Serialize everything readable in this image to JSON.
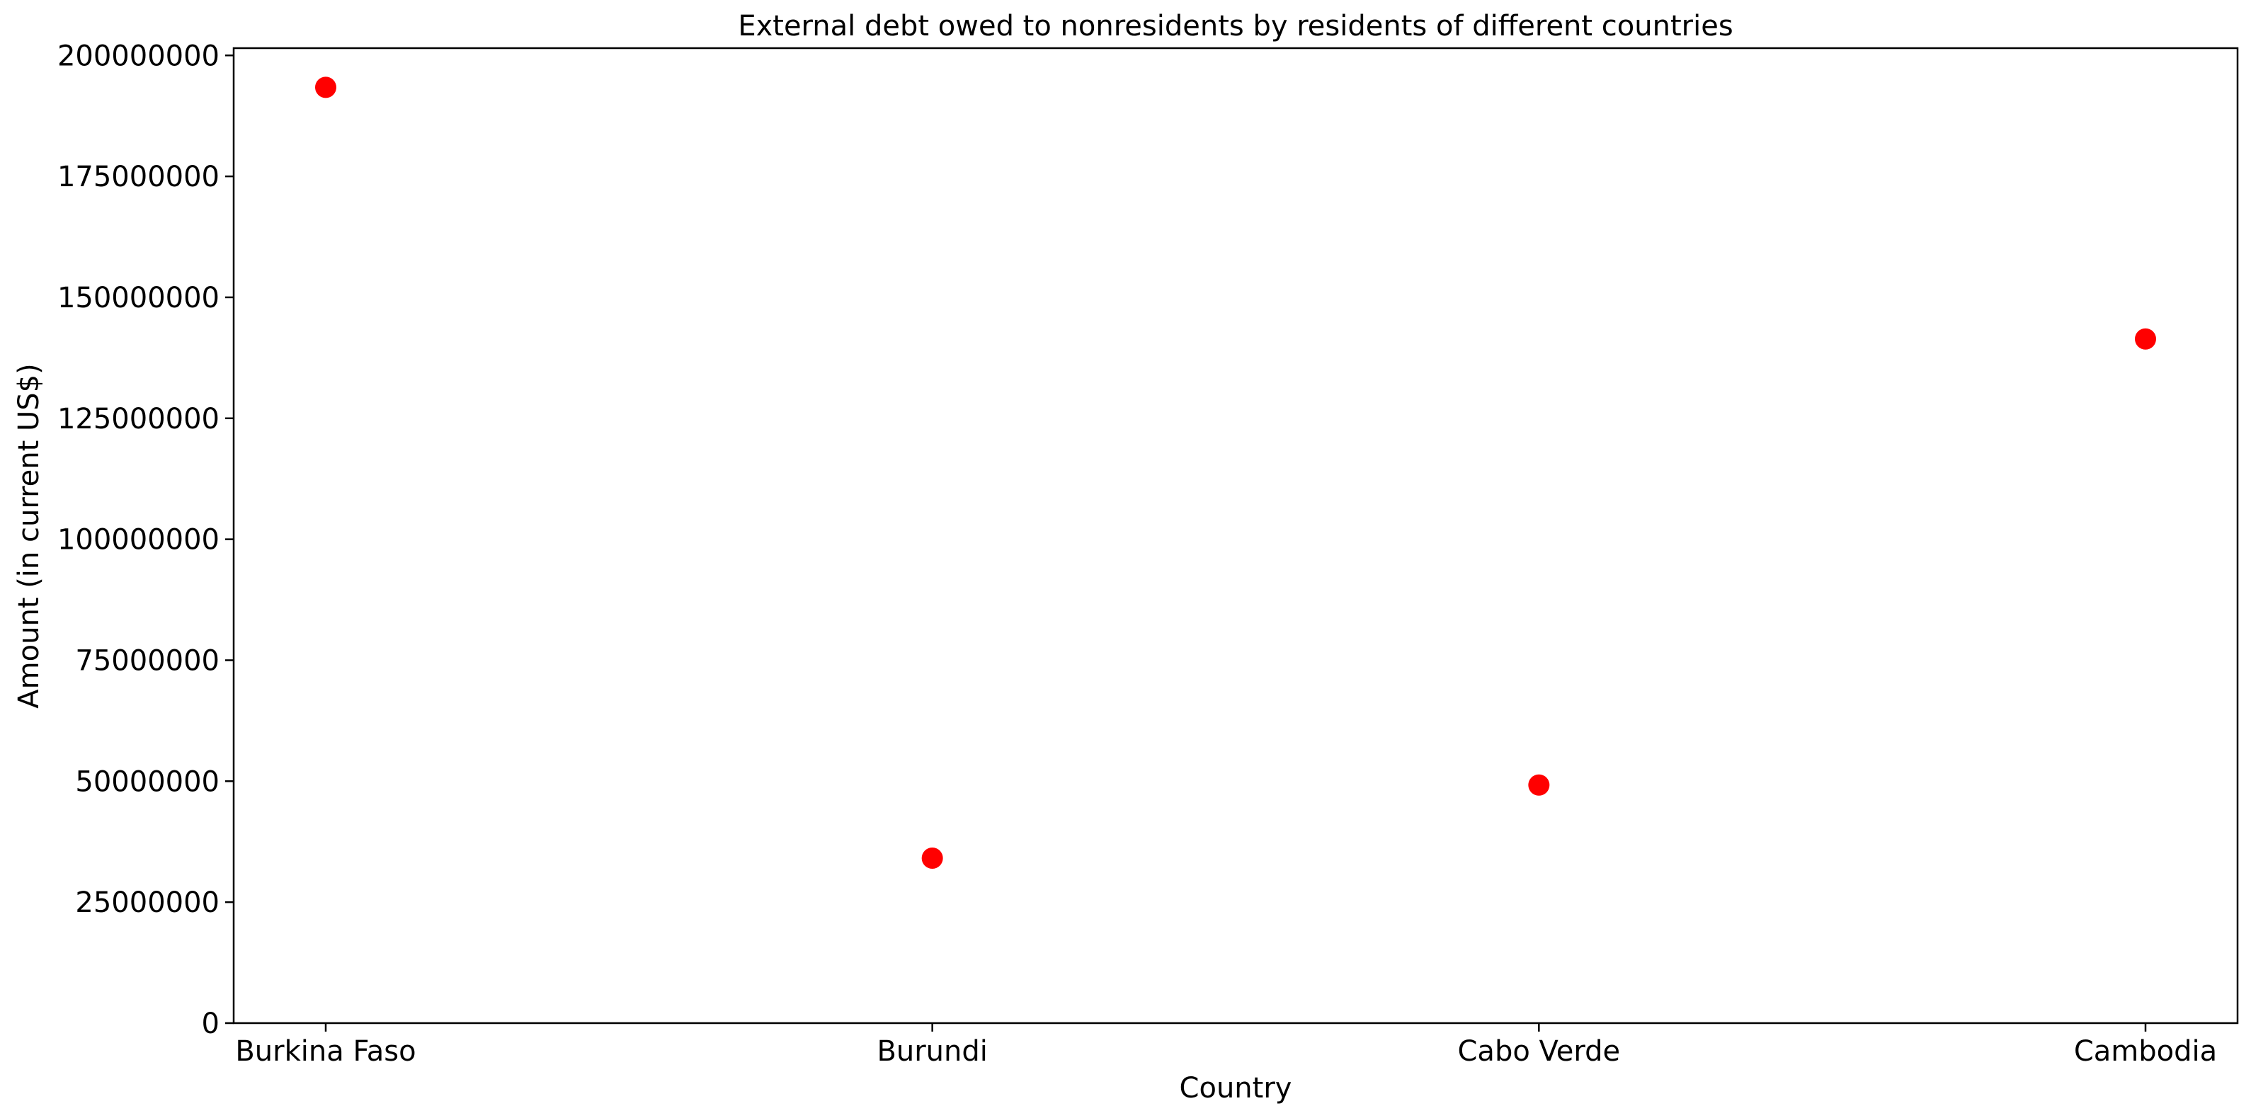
{
  "chart_data": {
    "type": "scatter",
    "title": "External debt owed to nonresidents by residents of different countries",
    "xlabel": "Country",
    "ylabel": "Amount (in current US$)",
    "categories": [
      "Burkina Faso",
      "Burundi",
      "Cabo Verde",
      "Cambodia"
    ],
    "values": [
      193400000,
      34100000,
      49200000,
      141400000
    ],
    "ylim": [
      0,
      201500000
    ],
    "yticks": [
      0,
      25000000,
      50000000,
      75000000,
      100000000,
      125000000,
      150000000,
      175000000,
      200000000
    ],
    "ytick_labels": [
      "0",
      "25000000",
      "50000000",
      "75000000",
      "100000000",
      "125000000",
      "150000000",
      "175000000",
      "200000000"
    ],
    "marker_color": "#ff0000",
    "grid": false,
    "legend": "none"
  }
}
